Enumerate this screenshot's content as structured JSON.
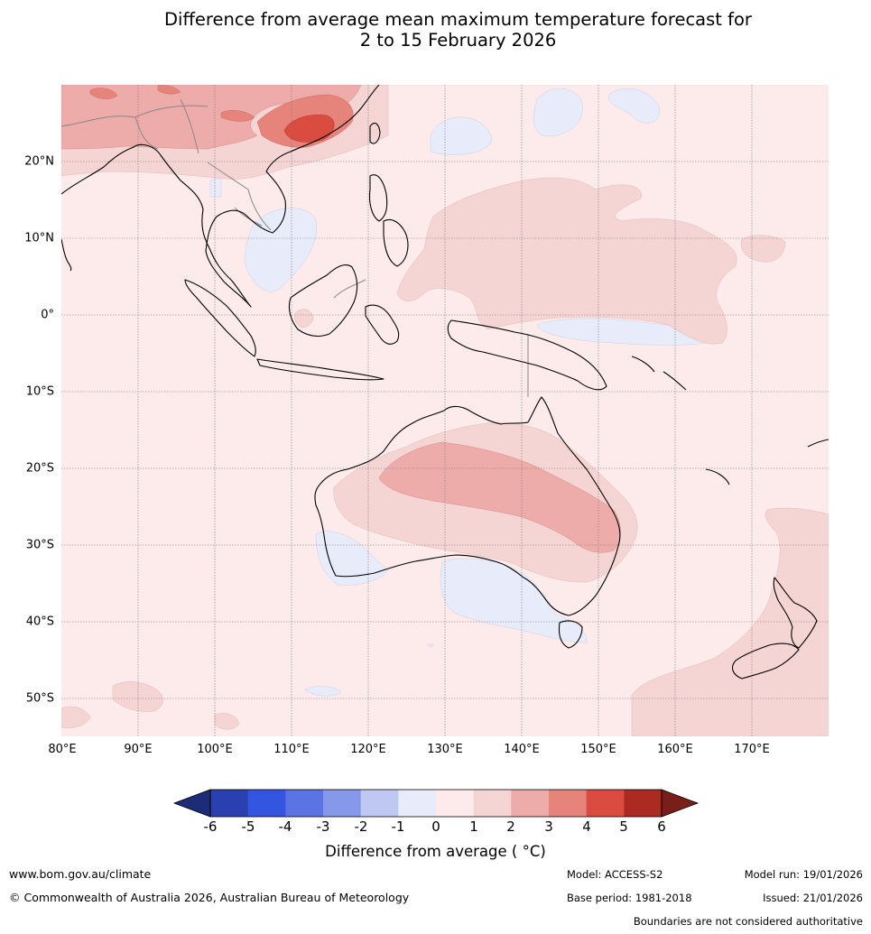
{
  "title_line1": "Difference from average mean maximum temperature forecast for",
  "title_line2": "2 to 15 February 2026",
  "map": {
    "lon_labels": [
      "80°E",
      "90°E",
      "100°E",
      "110°E",
      "120°E",
      "130°E",
      "140°E",
      "150°E",
      "160°E",
      "170°E"
    ],
    "lat_labels": [
      "20°N",
      "10°N",
      "0°",
      "10°S",
      "20°S",
      "30°S",
      "40°S",
      "50°S"
    ]
  },
  "colorbar": {
    "title": "Difference from average ( °C)",
    "tick_labels": [
      "-6",
      "-5",
      "-4",
      "-3",
      "-2",
      "-1",
      "0",
      "1",
      "2",
      "3",
      "4",
      "5",
      "6"
    ],
    "colors": {
      "below_-6": "#1d2c78",
      "-6_-5": "#2a3fb0",
      "-5_-4": "#3355e0",
      "-4_-3": "#5a74e3",
      "-3_-2": "#8598ea",
      "-2_-1": "#bfc7f3",
      "-1_0": "#e8ecfa",
      "0_1": "#fcebea",
      "1_2": "#f5d5d4",
      "2_3": "#edaca9",
      "3_4": "#e6847c",
      "4_5": "#d94c3f",
      "5_6": "#ab2b22",
      "above_6": "#7a1e1a"
    }
  },
  "footer": {
    "website": "www.bom.gov.au/climate",
    "copyright": "© Commonwealth of Australia 2026, Australian Bureau of Meteorology",
    "model": "Model: ACCESS-S2",
    "base_period": "Base period: 1981-2018",
    "model_run": "Model run: 19/01/2026",
    "issued": "Issued: 21/01/2026",
    "disclaimer": "Boundaries are not considered authoritative"
  }
}
